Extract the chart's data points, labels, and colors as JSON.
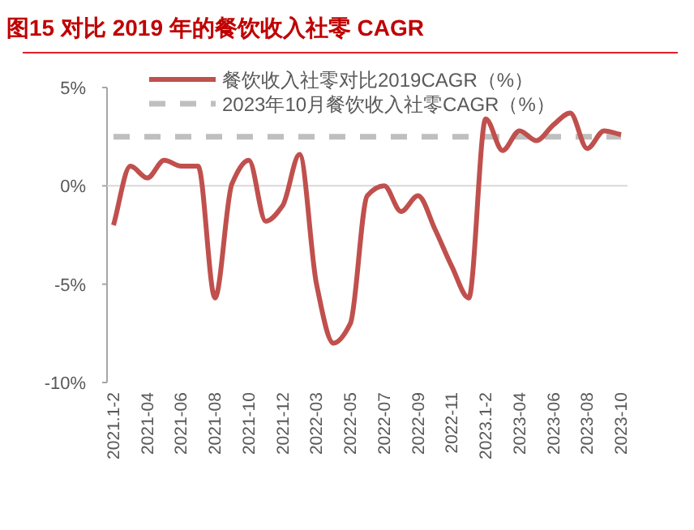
{
  "chart_data": {
    "type": "line",
    "title": "图15 对比 2019 年的餐饮收入社零 CAGR",
    "categories": [
      "2021.1-2",
      null,
      "2021-04",
      null,
      "2021-06",
      null,
      "2021-08",
      null,
      "2021-10",
      null,
      "2021-12",
      null,
      "2022-03",
      null,
      "2022-05",
      null,
      "2022-07",
      null,
      "2022-09",
      null,
      "2022-11",
      null,
      "2023.1-2",
      null,
      "2023-04",
      null,
      "2023-06",
      null,
      "2023-08",
      null,
      "2023-10"
    ],
    "series": [
      {
        "name": "餐饮收入社零对比2019CAGR（%）",
        "color": "#c0504d",
        "line_style": "solid",
        "values": [
          -2.0,
          1.0,
          0.4,
          1.3,
          1.0,
          1.0,
          -5.7,
          0.1,
          1.3,
          -1.8,
          -1.0,
          1.6,
          -5.0,
          -8.0,
          -7.0,
          -0.5,
          0.0,
          -1.3,
          -0.5,
          -2.2,
          -4.1,
          -5.7,
          3.4,
          1.8,
          2.8,
          2.3,
          3.1,
          3.7,
          1.9,
          2.8,
          2.6
        ]
      },
      {
        "name": "2023年10月餐饮收入社零CAGR（%）",
        "color": "#bfbfbf",
        "line_style": "dashed",
        "values": [
          2.5,
          2.5,
          2.5,
          2.5,
          2.5,
          2.5,
          2.5,
          2.5,
          2.5,
          2.5,
          2.5,
          2.5,
          2.5,
          2.5,
          2.5,
          2.5,
          2.5,
          2.5,
          2.5,
          2.5,
          2.5,
          2.5,
          2.5,
          2.5,
          2.5,
          2.5,
          2.5,
          2.5,
          2.5,
          2.5,
          2.5
        ]
      }
    ],
    "ylim": [
      -10,
      5
    ],
    "yticks": [
      {
        "value": 5,
        "label": "5%"
      },
      {
        "value": 0,
        "label": "0%"
      },
      {
        "value": -5,
        "label": "-5%"
      },
      {
        "value": -10,
        "label": "-10%"
      }
    ],
    "grid": false,
    "ref_lines": [
      {
        "axis": "y",
        "value": 0,
        "color": "#d9d9d9"
      }
    ],
    "legend": "top",
    "marker": "none"
  }
}
